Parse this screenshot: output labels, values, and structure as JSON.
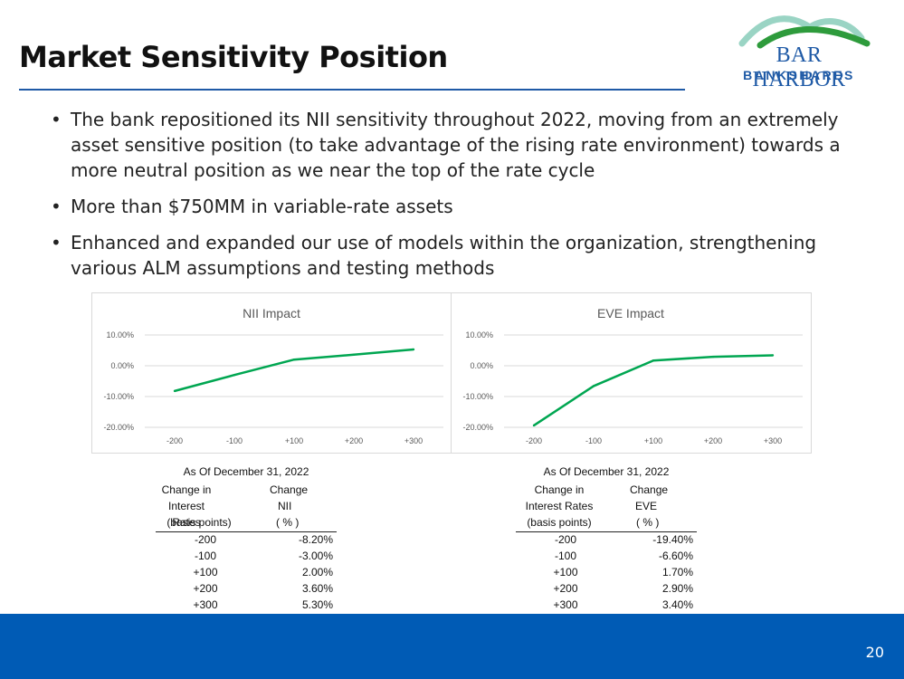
{
  "title": "Market Sensitivity Position",
  "logo": {
    "line1": "BAR HARBOR",
    "line2": "BANKSHARES"
  },
  "bullets": [
    "The bank repositioned its NII sensitivity throughout 2022, moving from an extremely asset sensitive position (to take advantage of the rising rate environment) towards a more neutral position as we near the top of the rate cycle",
    "More than $750MM in variable-rate assets",
    "Enhanced and expanded our use of models within the organization, strengthening various ALM assumptions and testing methods"
  ],
  "colors": {
    "accent": "#1f5aa6",
    "footer": "#005bb5",
    "line": "#00a651"
  },
  "chart_data": [
    {
      "type": "line",
      "title": "NII Impact",
      "categories": [
        "-200",
        "-100",
        "+100",
        "+200",
        "+300"
      ],
      "values": [
        -8.2,
        -3.0,
        2.0,
        3.6,
        5.3
      ],
      "yticks": [
        10,
        0,
        -10,
        -20
      ],
      "ytick_labels": [
        "10.00%",
        "0.00%",
        "-10.00%",
        "-20.00%"
      ],
      "ylim": [
        -20,
        10
      ],
      "grid": true
    },
    {
      "type": "line",
      "title": "EVE Impact",
      "categories": [
        "-200",
        "-100",
        "+100",
        "+200",
        "+300"
      ],
      "values": [
        -19.4,
        -6.6,
        1.7,
        2.9,
        3.4
      ],
      "yticks": [
        10,
        0,
        -10,
        -20
      ],
      "ytick_labels": [
        "10.00%",
        "0.00%",
        "-10.00%",
        "-20.00%"
      ],
      "ylim": [
        -20,
        10
      ],
      "grid": true
    }
  ],
  "tables": [
    {
      "caption": "As Of December 31, 2022",
      "col1": [
        "Change in",
        "Interest Rates",
        "(basis points)"
      ],
      "col2": [
        "Change",
        "NII",
        "( % )"
      ],
      "rows": [
        [
          "-200",
          "-8.20%"
        ],
        [
          "-100",
          "-3.00%"
        ],
        [
          "+100",
          "2.00%"
        ],
        [
          "+200",
          "3.60%"
        ],
        [
          "+300",
          "5.30%"
        ]
      ]
    },
    {
      "caption": "As Of December 31, 2022",
      "col1": [
        "Change in",
        "Interest Rates",
        "(basis points)"
      ],
      "col2": [
        "Change",
        "EVE",
        "( % )"
      ],
      "rows": [
        [
          "-200",
          "-19.40%"
        ],
        [
          "-100",
          "-6.60%"
        ],
        [
          "+100",
          "1.70%"
        ],
        [
          "+200",
          "2.90%"
        ],
        [
          "+300",
          "3.40%"
        ]
      ]
    }
  ],
  "footer": {
    "page_number": "20"
  }
}
